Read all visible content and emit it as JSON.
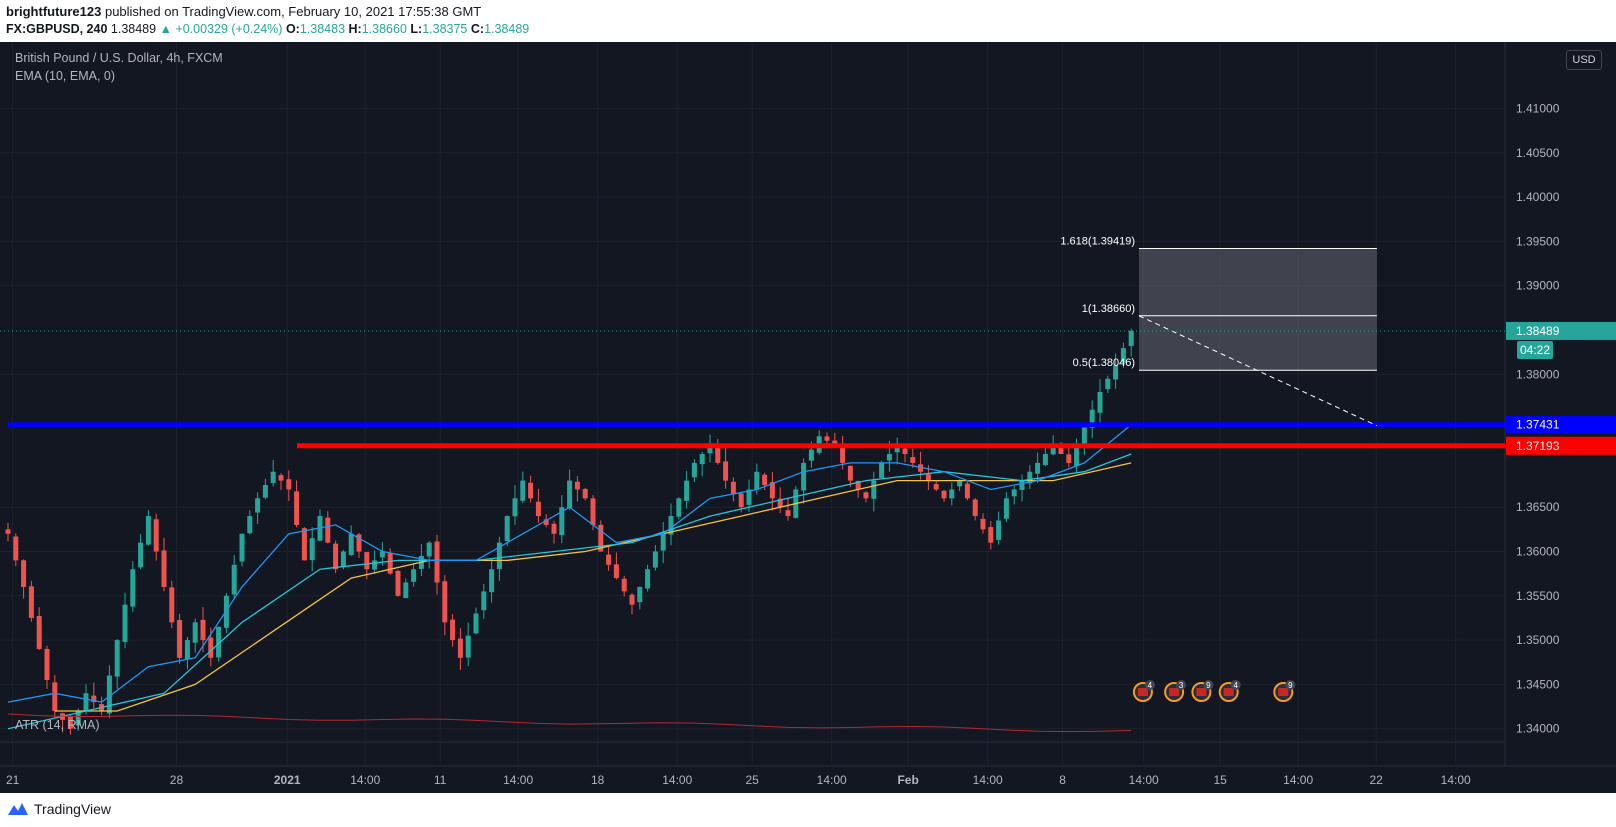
{
  "header": {
    "author": "brightfuture123",
    "published_text": "published on TradingView.com, February 10, 2021 17:55:38 GMT",
    "symbol": "FX:GBPUSD, 240",
    "last": "1.38489",
    "change": "+0.00329 (+0.24%)",
    "o_label": "O:",
    "o_value": "1.38483",
    "h_label": "H:",
    "h_value": "1.38660",
    "l_label": "L:",
    "l_value": "1.38375",
    "c_label": "C:",
    "c_value": "1.38489"
  },
  "legend": {
    "title": "British Pound / U.S. Dollar, 4h, FXCM",
    "ema": "EMA (10, EMA, 0)",
    "atr": "ATR (14, RMA)"
  },
  "currency_button": "USD",
  "footer": {
    "brand": "TradingView"
  },
  "colors": {
    "background": "#131722",
    "up": "#26a69a",
    "down": "#ef5350",
    "blue_line": "#0000ff",
    "red_line": "#ff0000",
    "ema_fast": "#2196f3",
    "ema_mid": "#26c6da",
    "ema_slow": "#f5c242"
  },
  "chart_data": {
    "type": "candlestick",
    "ylim": [
      1.3385,
      1.4175
    ],
    "y_ticks": [
      "1.41000",
      "1.40500",
      "1.40000",
      "1.39500",
      "1.39000",
      "1.38000",
      "1.36500",
      "1.36000",
      "1.35500",
      "1.35000",
      "1.34500",
      "1.34000"
    ],
    "x_ticks": [
      {
        "label": "21",
        "x": 0.6
      },
      {
        "label": "28",
        "x": 21.6
      },
      {
        "label": "2021",
        "x": 35.8
      },
      {
        "label": "14:00",
        "x": 45.8
      },
      {
        "label": "11",
        "x": 55.4
      },
      {
        "label": "14:00",
        "x": 65.4
      },
      {
        "label": "18",
        "x": 75.6
      },
      {
        "label": "14:00",
        "x": 85.8
      },
      {
        "label": "25",
        "x": 95.4
      },
      {
        "label": "14:00",
        "x": 105.6
      },
      {
        "label": "Feb",
        "x": 115.4
      },
      {
        "label": "14:00",
        "x": 125.6
      },
      {
        "label": "8",
        "x": 135.2
      },
      {
        "label": "14:00",
        "x": 145.6
      },
      {
        "label": "15",
        "x": 155.4
      },
      {
        "label": "14:00",
        "x": 165.4
      },
      {
        "label": "22",
        "x": 175.4
      },
      {
        "label": "14:00",
        "x": 185.6
      }
    ],
    "candles_summary": "Approx 4h candles from Dec 17, 2020 to Feb 10, 2021, close path",
    "close_path": [
      [
        0,
        1.362
      ],
      [
        2,
        1.356
      ],
      [
        4,
        1.349
      ],
      [
        6,
        1.342
      ],
      [
        8,
        1.34
      ],
      [
        10,
        1.344
      ],
      [
        12,
        1.342
      ],
      [
        14,
        1.35
      ],
      [
        16,
        1.358
      ],
      [
        18,
        1.364
      ],
      [
        20,
        1.356
      ],
      [
        22,
        1.348
      ],
      [
        24,
        1.352
      ],
      [
        26,
        1.348
      ],
      [
        28,
        1.355
      ],
      [
        30,
        1.362
      ],
      [
        32,
        1.366
      ],
      [
        34,
        1.369
      ],
      [
        36,
        1.367
      ],
      [
        38,
        1.359
      ],
      [
        40,
        1.364
      ],
      [
        42,
        1.358
      ],
      [
        44,
        1.362
      ],
      [
        46,
        1.358
      ],
      [
        48,
        1.36
      ],
      [
        50,
        1.355
      ],
      [
        52,
        1.358
      ],
      [
        54,
        1.361
      ],
      [
        56,
        1.352
      ],
      [
        58,
        1.348
      ],
      [
        60,
        1.353
      ],
      [
        62,
        1.358
      ],
      [
        64,
        1.364
      ],
      [
        66,
        1.368
      ],
      [
        68,
        1.364
      ],
      [
        70,
        1.362
      ],
      [
        72,
        1.368
      ],
      [
        74,
        1.366
      ],
      [
        76,
        1.36
      ],
      [
        78,
        1.357
      ],
      [
        80,
        1.354
      ],
      [
        82,
        1.358
      ],
      [
        84,
        1.362
      ],
      [
        86,
        1.366
      ],
      [
        88,
        1.37
      ],
      [
        90,
        1.372
      ],
      [
        92,
        1.368
      ],
      [
        94,
        1.365
      ],
      [
        96,
        1.369
      ],
      [
        98,
        1.366
      ],
      [
        100,
        1.364
      ],
      [
        102,
        1.37
      ],
      [
        104,
        1.373
      ],
      [
        106,
        1.372
      ],
      [
        108,
        1.368
      ],
      [
        110,
        1.366
      ],
      [
        112,
        1.37
      ],
      [
        114,
        1.372
      ],
      [
        116,
        1.37
      ],
      [
        118,
        1.368
      ],
      [
        120,
        1.366
      ],
      [
        122,
        1.368
      ],
      [
        124,
        1.364
      ],
      [
        126,
        1.361
      ],
      [
        128,
        1.366
      ],
      [
        130,
        1.368
      ],
      [
        132,
        1.37
      ],
      [
        134,
        1.372
      ],
      [
        136,
        1.37
      ],
      [
        138,
        1.374
      ],
      [
        140,
        1.378
      ],
      [
        142,
        1.381
      ],
      [
        144,
        1.3849
      ]
    ],
    "ema_fast": [
      [
        0,
        1.343
      ],
      [
        6,
        1.344
      ],
      [
        12,
        1.343
      ],
      [
        18,
        1.347
      ],
      [
        24,
        1.348
      ],
      [
        30,
        1.356
      ],
      [
        36,
        1.362
      ],
      [
        42,
        1.363
      ],
      [
        48,
        1.36
      ],
      [
        54,
        1.359
      ],
      [
        60,
        1.359
      ],
      [
        66,
        1.362
      ],
      [
        72,
        1.365
      ],
      [
        78,
        1.361
      ],
      [
        84,
        1.362
      ],
      [
        90,
        1.366
      ],
      [
        96,
        1.367
      ],
      [
        102,
        1.369
      ],
      [
        108,
        1.37
      ],
      [
        114,
        1.37
      ],
      [
        120,
        1.369
      ],
      [
        126,
        1.367
      ],
      [
        132,
        1.368
      ],
      [
        138,
        1.37
      ],
      [
        144,
        1.3743
      ]
    ],
    "ema_mid": [
      [
        0,
        1.34
      ],
      [
        10,
        1.342
      ],
      [
        20,
        1.344
      ],
      [
        30,
        1.352
      ],
      [
        40,
        1.358
      ],
      [
        50,
        1.359
      ],
      [
        60,
        1.359
      ],
      [
        70,
        1.36
      ],
      [
        80,
        1.361
      ],
      [
        90,
        1.364
      ],
      [
        100,
        1.366
      ],
      [
        110,
        1.368
      ],
      [
        120,
        1.369
      ],
      [
        130,
        1.368
      ],
      [
        138,
        1.369
      ],
      [
        144,
        1.371
      ]
    ],
    "ema_slow": [
      [
        6,
        1.342
      ],
      [
        14,
        1.342
      ],
      [
        24,
        1.345
      ],
      [
        34,
        1.351
      ],
      [
        44,
        1.357
      ],
      [
        54,
        1.359
      ],
      [
        64,
        1.359
      ],
      [
        74,
        1.36
      ],
      [
        84,
        1.362
      ],
      [
        94,
        1.364
      ],
      [
        104,
        1.366
      ],
      [
        114,
        1.368
      ],
      [
        124,
        1.368
      ],
      [
        134,
        1.368
      ],
      [
        144,
        1.37
      ]
    ],
    "horizontal_levels": [
      {
        "name": "blue-level",
        "value": "1.37431",
        "price": 1.37431,
        "color": "#0000ff"
      },
      {
        "name": "red-level",
        "value": "1.37193",
        "price": 1.37193,
        "color": "#ff0000"
      }
    ],
    "fib": [
      {
        "label": "1.618(1.39419)",
        "price": 1.39419
      },
      {
        "label": "1(1.38660)",
        "price": 1.3866
      },
      {
        "label": "0.5(1.38046)",
        "price": 1.38046
      }
    ],
    "last_price_label": "1.38489",
    "countdown": "04:22",
    "events": [
      {
        "count": "4",
        "x": 145.5
      },
      {
        "count": "3",
        "x": 149.5
      },
      {
        "count": "9",
        "x": 153
      },
      {
        "count": "4",
        "x": 156.5
      },
      {
        "count": "9",
        "x": 163.5
      }
    ]
  }
}
